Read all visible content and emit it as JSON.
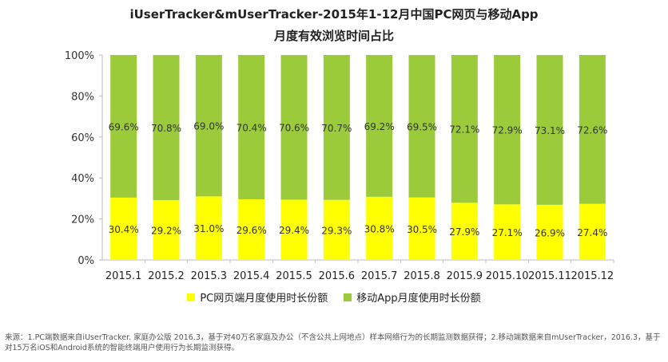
{
  "title": {
    "line1": "iUserTracker&mUserTracker-2015年1-12月中国PC网页与移动App",
    "line2": "月度有效浏览时间占比"
  },
  "colors": {
    "pc": "#FFFF00",
    "app": "#9BCB3B",
    "axis": "#BBBBBB"
  },
  "legend": {
    "pc": "PC网页端月度使用时长份额",
    "app": "移动App月度使用时长份额"
  },
  "footnote": "来源：1.PC端数据来自iUserTracker. 家庭办公版 2016.3，基于对40万名家庭及办公（不含公共上网地点）样本网络行为的长期监测数据获得；2.移动端数据来自mUserTracker，2016.3，基于对15万名iOS和Android系统的智能终端用户使用行为长期监测获得。",
  "chart_data": {
    "type": "bar",
    "stacked": true,
    "categories": [
      "2015.1",
      "2015.2",
      "2015.3",
      "2015.4",
      "2015.5",
      "2015.6",
      "2015.7",
      "2015.8",
      "2015.9",
      "2015.10",
      "2015.11",
      "2015.12"
    ],
    "series": [
      {
        "name": "PC网页端月度使用时长份额",
        "values": [
          30.4,
          29.2,
          31.0,
          29.6,
          29.4,
          29.3,
          30.8,
          30.5,
          27.9,
          27.1,
          26.9,
          27.4
        ],
        "labels": [
          "30.4%",
          "29.2%",
          "31.0%",
          "29.6%",
          "29.4%",
          "29.3%",
          "30.8%",
          "30.5%",
          "27.9%",
          "27.1%",
          "26.9%",
          "27.4%"
        ]
      },
      {
        "name": "移动App月度使用时长份额",
        "values": [
          69.6,
          70.8,
          69.0,
          70.4,
          70.6,
          70.7,
          69.2,
          69.5,
          72.1,
          72.9,
          73.1,
          72.6
        ],
        "labels": [
          "69.6%",
          "70.8%",
          "69.0%",
          "70.4%",
          "70.6%",
          "70.7%",
          "69.2%",
          "69.5%",
          "72.1%",
          "72.9%",
          "73.1%",
          "72.6%"
        ]
      }
    ],
    "yticks": [
      "0%",
      "20%",
      "40%",
      "60%",
      "80%",
      "100%"
    ],
    "ylim": [
      0,
      100
    ],
    "grid": false,
    "legend_position": "bottom"
  }
}
